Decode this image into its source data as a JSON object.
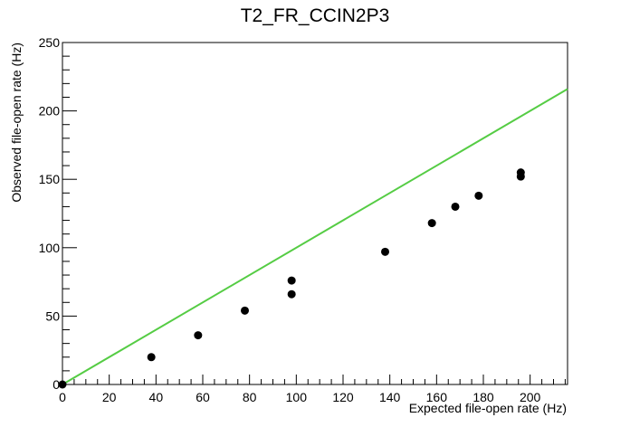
{
  "chart_data": {
    "type": "scatter",
    "title": "T2_FR_CCIN2P3",
    "xlabel": "Expected file-open rate (Hz)",
    "ylabel": "Observed file-open rate (Hz)",
    "xlim": [
      0,
      216
    ],
    "ylim": [
      0,
      250
    ],
    "x_ticks": [
      0,
      20,
      40,
      60,
      80,
      100,
      120,
      140,
      160,
      180,
      200
    ],
    "y_ticks": [
      0,
      50,
      100,
      150,
      200,
      250
    ],
    "grid": false,
    "legend": "none",
    "points": [
      {
        "x": 0,
        "y": 0
      },
      {
        "x": 38,
        "y": 20
      },
      {
        "x": 58,
        "y": 36
      },
      {
        "x": 78,
        "y": 54
      },
      {
        "x": 98,
        "y": 66
      },
      {
        "x": 98,
        "y": 76
      },
      {
        "x": 138,
        "y": 97
      },
      {
        "x": 158,
        "y": 118
      },
      {
        "x": 168,
        "y": 130
      },
      {
        "x": 178,
        "y": 138
      },
      {
        "x": 196,
        "y": 152
      },
      {
        "x": 196,
        "y": 155
      }
    ],
    "reference_line": {
      "x": [
        0,
        216
      ],
      "y": [
        0,
        216
      ],
      "color": "#55cc44"
    },
    "point_color": "#000000"
  }
}
